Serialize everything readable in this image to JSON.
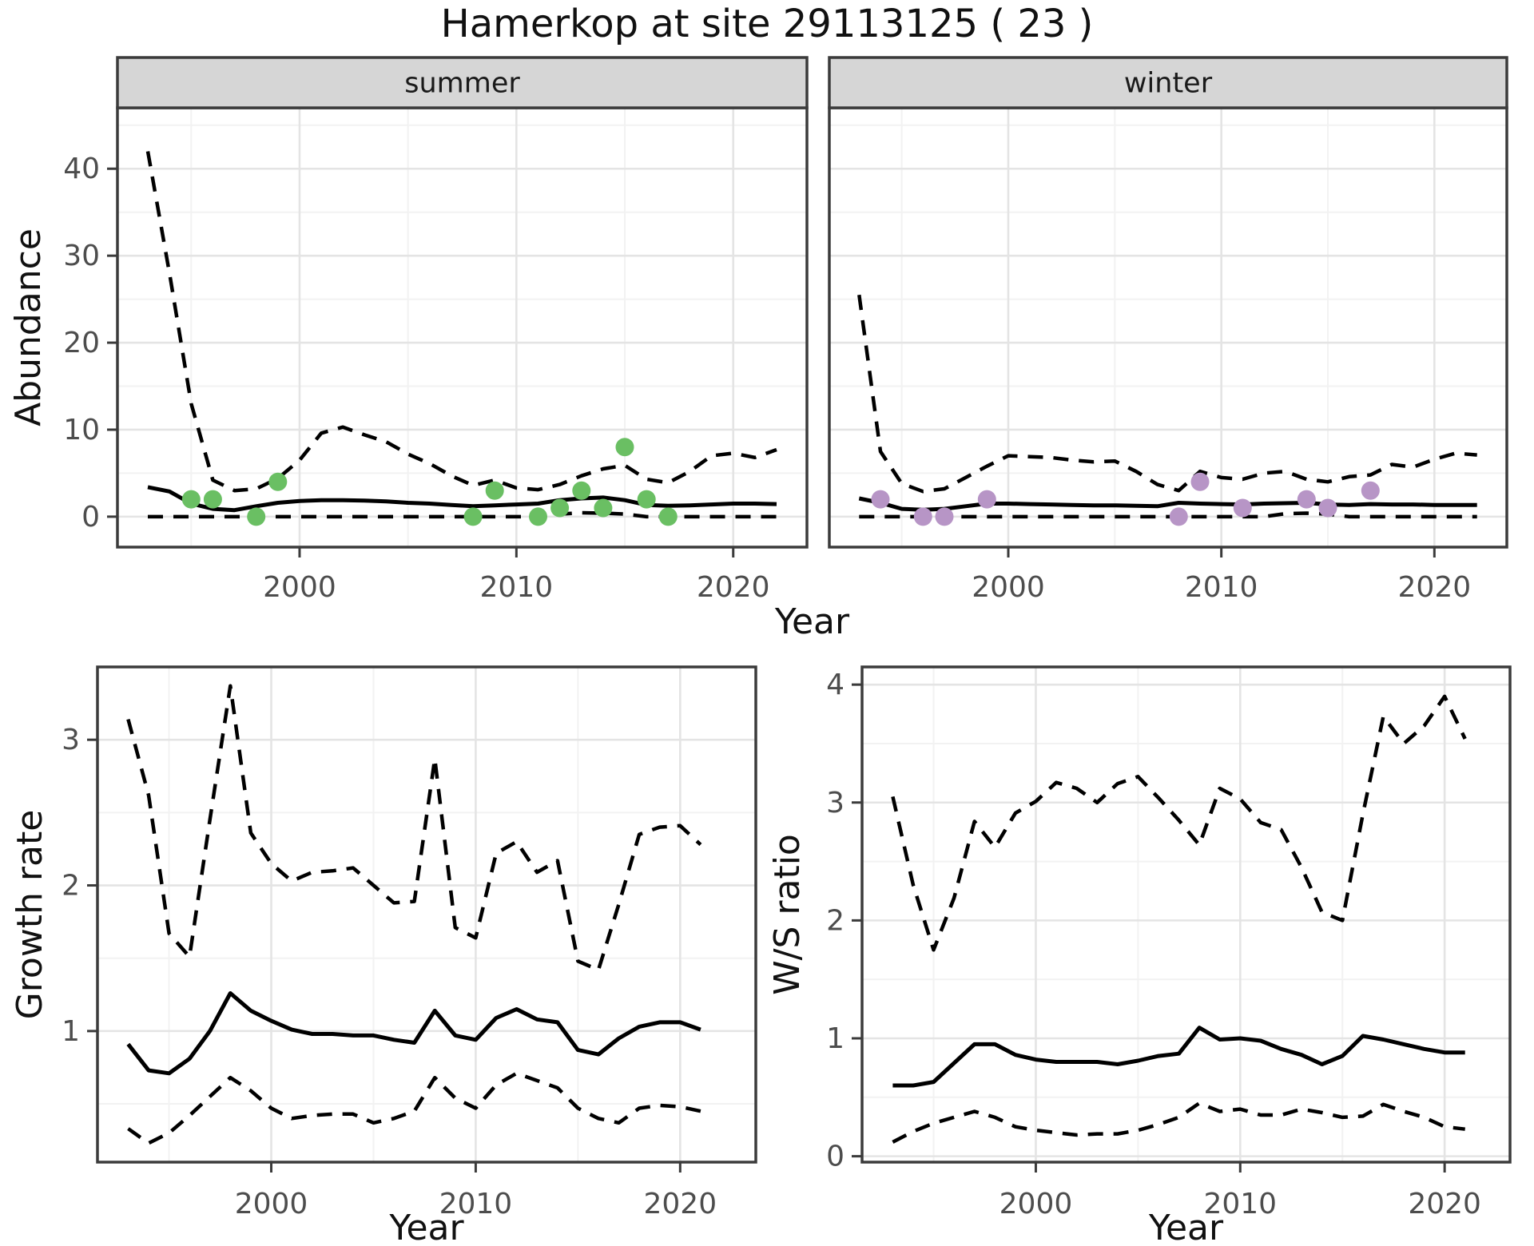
{
  "title": "Hamerkop at site 29113125 ( 23 )",
  "colors": {
    "summer_point": "#6abf63",
    "winter_point": "#b795c6",
    "line": "#000000",
    "grid_major": "#e4e4e4",
    "grid_minor": "#f2f2f2",
    "panel_border": "#3b3b3b",
    "strip_bg": "#d6d6d6",
    "strip_text": "#1a1a1a",
    "tick_text": "#4d4d4d",
    "axis_title_text": "#111111",
    "panel_bg": "#ffffff"
  },
  "chart_data": [
    {
      "type": "line",
      "id": "abundance-summer",
      "facet_label": "summer",
      "xlabel": "Year",
      "ylabel": "Abundance",
      "x_ticks": [
        2000,
        2010,
        2020
      ],
      "y_ticks": [
        0,
        10,
        20,
        30,
        40
      ],
      "xlim": [
        1991.6,
        2023.4
      ],
      "ylim": [
        -3.5,
        47
      ],
      "grid": true,
      "legend": "none",
      "years": [
        1993,
        1994,
        1995,
        1996,
        1997,
        1998,
        1999,
        2000,
        2001,
        2002,
        2003,
        2004,
        2005,
        2006,
        2007,
        2008,
        2009,
        2010,
        2011,
        2012,
        2013,
        2014,
        2015,
        2016,
        2017,
        2018,
        2019,
        2020,
        2021,
        2022
      ],
      "series": [
        {
          "name": "upper_ci",
          "style": "dashed",
          "values": [
            42,
            28,
            13,
            4.2,
            3.0,
            3.2,
            4.4,
            6.5,
            9.6,
            10.3,
            9.4,
            8.6,
            7.2,
            6.1,
            4.7,
            3.6,
            4.2,
            3.3,
            3.1,
            3.7,
            4.7,
            5.5,
            5.9,
            4.3,
            3.9,
            5.2,
            7.0,
            7.3,
            6.8,
            7.7
          ]
        },
        {
          "name": "median",
          "style": "solid",
          "values": [
            3.4,
            2.9,
            1.5,
            0.9,
            0.75,
            1.2,
            1.6,
            1.8,
            1.9,
            1.9,
            1.85,
            1.75,
            1.6,
            1.5,
            1.35,
            1.2,
            1.3,
            1.4,
            1.5,
            1.9,
            2.1,
            2.2,
            1.9,
            1.35,
            1.25,
            1.3,
            1.4,
            1.5,
            1.5,
            1.45
          ]
        },
        {
          "name": "lower_ci",
          "style": "dashed",
          "values": [
            0,
            0,
            0,
            0,
            0,
            0,
            0,
            0,
            0,
            0,
            0,
            0,
            0,
            0,
            0,
            0,
            0,
            0,
            0,
            0.3,
            0.45,
            0.4,
            0.3,
            0,
            0,
            0,
            0,
            0,
            0,
            0
          ]
        }
      ],
      "observations": [
        [
          1995,
          2
        ],
        [
          1996,
          2
        ],
        [
          1998,
          0
        ],
        [
          1999,
          4
        ],
        [
          2008,
          0
        ],
        [
          2009,
          3
        ],
        [
          2011,
          0
        ],
        [
          2012,
          1
        ],
        [
          2013,
          3
        ],
        [
          2014,
          1
        ],
        [
          2015,
          8
        ],
        [
          2016,
          2
        ],
        [
          2017,
          0
        ]
      ],
      "point_color_key": "summer_point"
    },
    {
      "type": "line",
      "id": "abundance-winter",
      "facet_label": "winter",
      "xlabel": "Year",
      "ylabel": "Abundance",
      "x_ticks": [
        2000,
        2010,
        2020
      ],
      "y_ticks": [
        0,
        10,
        20,
        30,
        40
      ],
      "xlim": [
        1991.6,
        2023.4
      ],
      "ylim": [
        -3.5,
        47
      ],
      "grid": true,
      "legend": "none",
      "years": [
        1993,
        1994,
        1995,
        1996,
        1997,
        1998,
        1999,
        2000,
        2001,
        2002,
        2003,
        2004,
        2005,
        2006,
        2007,
        2008,
        2009,
        2010,
        2011,
        2012,
        2013,
        2014,
        2015,
        2016,
        2017,
        2018,
        2019,
        2020,
        2021,
        2022
      ],
      "series": [
        {
          "name": "upper_ci",
          "style": "dashed",
          "values": [
            25.5,
            7.5,
            3.8,
            2.9,
            3.2,
            4.5,
            5.8,
            7.0,
            6.9,
            6.8,
            6.5,
            6.3,
            6.4,
            5.2,
            3.7,
            3.0,
            5.2,
            4.5,
            4.3,
            5.0,
            5.2,
            4.3,
            4.0,
            4.6,
            4.8,
            6.0,
            5.7,
            6.6,
            7.3,
            7.1
          ]
        },
        {
          "name": "median",
          "style": "solid",
          "values": [
            2.1,
            1.6,
            0.9,
            0.8,
            0.9,
            1.2,
            1.5,
            1.5,
            1.45,
            1.4,
            1.35,
            1.3,
            1.3,
            1.25,
            1.2,
            1.6,
            1.5,
            1.45,
            1.4,
            1.5,
            1.55,
            1.6,
            1.4,
            1.35,
            1.45,
            1.4,
            1.4,
            1.35,
            1.35,
            1.35
          ]
        },
        {
          "name": "lower_ci",
          "style": "dashed",
          "values": [
            0,
            0,
            0,
            0,
            0,
            0,
            0,
            0,
            0,
            0,
            0,
            0,
            0,
            0,
            0,
            0,
            0,
            0,
            0,
            0,
            0.35,
            0.4,
            0.3,
            0,
            0,
            0,
            0,
            0,
            0,
            0
          ]
        }
      ],
      "observations": [
        [
          1994,
          2
        ],
        [
          1996,
          0
        ],
        [
          1997,
          0
        ],
        [
          1999,
          2
        ],
        [
          2008,
          0
        ],
        [
          2009,
          4
        ],
        [
          2011,
          1
        ],
        [
          2014,
          2
        ],
        [
          2015,
          1
        ],
        [
          2017,
          3
        ]
      ],
      "point_color_key": "winter_point"
    },
    {
      "type": "line",
      "id": "growth-rate",
      "facet_label": "",
      "xlabel": "Year",
      "ylabel": "Growth rate",
      "x_ticks": [
        2000,
        2010,
        2020
      ],
      "y_ticks": [
        1,
        2,
        3
      ],
      "xlim": [
        1991.5,
        2023.7
      ],
      "ylim": [
        0.1,
        3.5
      ],
      "grid": true,
      "legend": "none",
      "years": [
        1993,
        1994,
        1995,
        1996,
        1997,
        1998,
        1999,
        2000,
        2001,
        2002,
        2003,
        2004,
        2005,
        2006,
        2007,
        2008,
        2009,
        2010,
        2011,
        2012,
        2013,
        2014,
        2015,
        2016,
        2017,
        2018,
        2019,
        2020,
        2021
      ],
      "series": [
        {
          "name": "upper_ci",
          "style": "dashed",
          "values": [
            3.14,
            2.62,
            1.67,
            1.51,
            2.45,
            3.37,
            2.36,
            2.15,
            2.03,
            2.09,
            2.1,
            2.12,
            2.0,
            1.88,
            1.89,
            2.87,
            1.71,
            1.64,
            2.22,
            2.3,
            2.09,
            2.17,
            1.48,
            1.42,
            1.87,
            2.35,
            2.4,
            2.41,
            2.28
          ]
        },
        {
          "name": "median",
          "style": "solid",
          "values": [
            0.91,
            0.73,
            0.71,
            0.81,
            1.0,
            1.26,
            1.14,
            1.07,
            1.01,
            0.98,
            0.98,
            0.97,
            0.97,
            0.94,
            0.92,
            1.14,
            0.97,
            0.94,
            1.09,
            1.15,
            1.08,
            1.06,
            0.87,
            0.84,
            0.95,
            1.03,
            1.06,
            1.06,
            1.01
          ]
        },
        {
          "name": "lower_ci",
          "style": "dashed",
          "values": [
            0.33,
            0.23,
            0.3,
            0.42,
            0.55,
            0.68,
            0.59,
            0.47,
            0.4,
            0.42,
            0.43,
            0.43,
            0.37,
            0.4,
            0.45,
            0.68,
            0.54,
            0.47,
            0.63,
            0.71,
            0.66,
            0.61,
            0.47,
            0.4,
            0.37,
            0.47,
            0.49,
            0.48,
            0.45
          ]
        }
      ],
      "observations": [],
      "point_color_key": null
    },
    {
      "type": "line",
      "id": "ws-ratio",
      "facet_label": "",
      "xlabel": "Year",
      "ylabel": "W/S ratio",
      "x_ticks": [
        2000,
        2010,
        2020
      ],
      "y_ticks": [
        0,
        1,
        2,
        3,
        4
      ],
      "xlim": [
        1991.5,
        2023.2
      ],
      "ylim": [
        -0.05,
        4.15
      ],
      "grid": true,
      "legend": "none",
      "years": [
        1993,
        1994,
        1995,
        1996,
        1997,
        1998,
        1999,
        2000,
        2001,
        2002,
        2003,
        2004,
        2005,
        2006,
        2007,
        2008,
        2009,
        2010,
        2011,
        2012,
        2013,
        2014,
        2015,
        2016,
        2017,
        2018,
        2019,
        2020,
        2021
      ],
      "series": [
        {
          "name": "upper_ci",
          "style": "dashed",
          "values": [
            3.05,
            2.3,
            1.75,
            2.19,
            2.84,
            2.62,
            2.91,
            3.01,
            3.17,
            3.12,
            3.0,
            3.16,
            3.22,
            3.04,
            2.85,
            2.64,
            3.12,
            3.03,
            2.83,
            2.77,
            2.45,
            2.07,
            2.0,
            2.9,
            3.73,
            3.5,
            3.65,
            3.9,
            3.54
          ]
        },
        {
          "name": "median",
          "style": "solid",
          "values": [
            0.6,
            0.6,
            0.63,
            0.79,
            0.95,
            0.95,
            0.86,
            0.82,
            0.8,
            0.8,
            0.8,
            0.78,
            0.81,
            0.85,
            0.87,
            1.09,
            0.99,
            1.0,
            0.98,
            0.91,
            0.86,
            0.78,
            0.85,
            1.02,
            0.99,
            0.95,
            0.91,
            0.88,
            0.88
          ]
        },
        {
          "name": "lower_ci",
          "style": "dashed",
          "values": [
            0.12,
            0.21,
            0.28,
            0.33,
            0.38,
            0.33,
            0.25,
            0.22,
            0.2,
            0.18,
            0.19,
            0.19,
            0.22,
            0.27,
            0.33,
            0.45,
            0.38,
            0.4,
            0.35,
            0.35,
            0.4,
            0.37,
            0.33,
            0.34,
            0.44,
            0.38,
            0.33,
            0.25,
            0.23
          ]
        }
      ],
      "observations": [],
      "point_color_key": null
    }
  ]
}
